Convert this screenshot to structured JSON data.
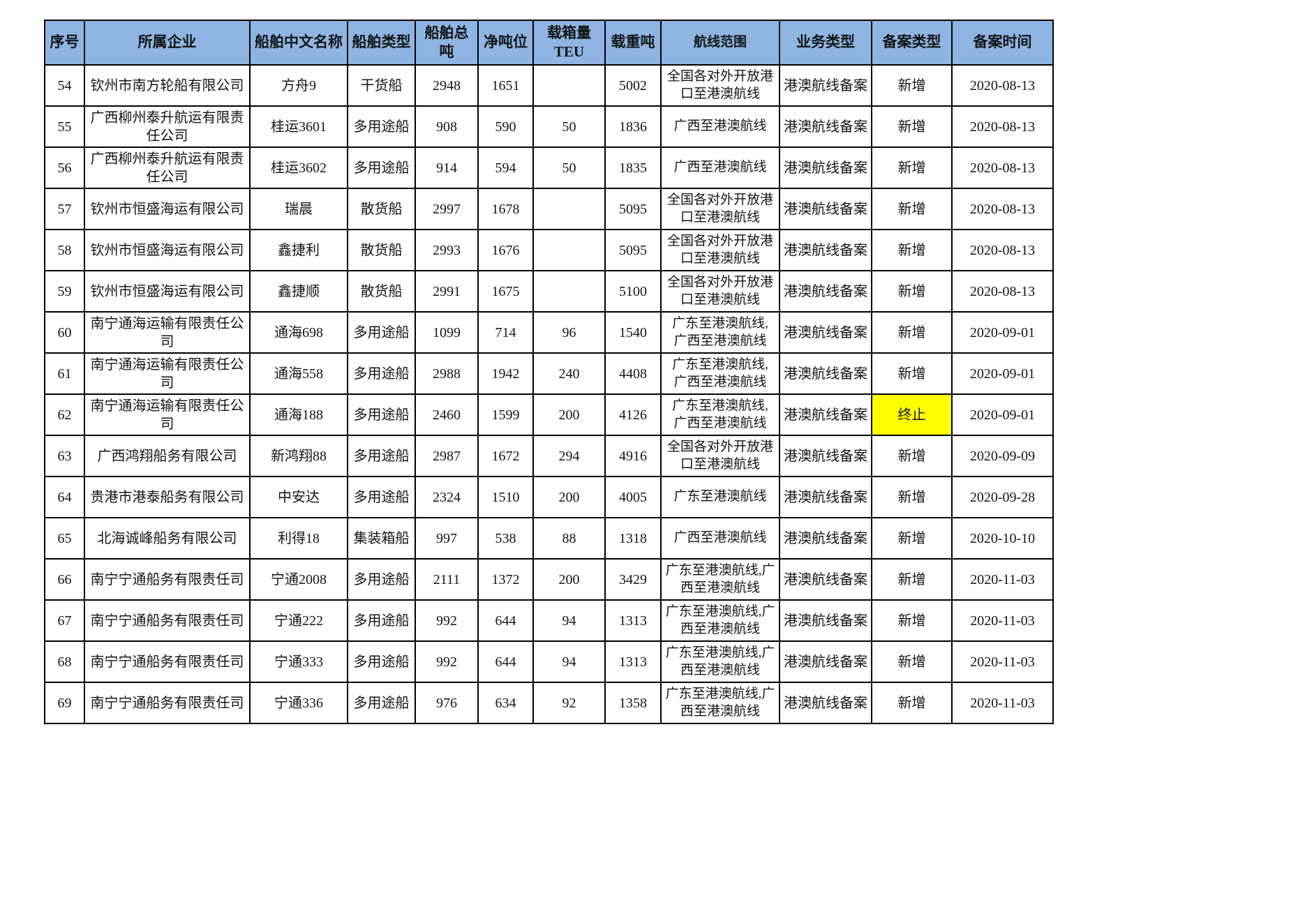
{
  "colors": {
    "header_bg": "#8DB4E2",
    "highlight_bg": "#FFFF00",
    "border": "#000000",
    "text": "#141414"
  },
  "table": {
    "columns": [
      {
        "key": "index",
        "label": "序号"
      },
      {
        "key": "company",
        "label": "所属企业"
      },
      {
        "key": "ship_name",
        "label": "船舶中文名称"
      },
      {
        "key": "ship_type",
        "label": "船舶类型"
      },
      {
        "key": "gross_tonnage",
        "label": "船舶总吨"
      },
      {
        "key": "net_tonnage",
        "label": "净吨位"
      },
      {
        "key": "teu",
        "label": "载箱量TEU"
      },
      {
        "key": "dwt",
        "label": "载重吨"
      },
      {
        "key": "route",
        "label": "航线范围"
      },
      {
        "key": "business_type",
        "label": "业务类型"
      },
      {
        "key": "filing_type",
        "label": "备案类型"
      },
      {
        "key": "filing_date",
        "label": "备案时间"
      }
    ],
    "rows": [
      {
        "index": "54",
        "company": "钦州市南方轮船有限公司",
        "ship_name": "方舟9",
        "ship_type": "干货船",
        "gross_tonnage": "2948",
        "net_tonnage": "1651",
        "teu": "",
        "dwt": "5002",
        "route": "全国各对外开放港\n口至港澳航线",
        "business_type": "港澳航线备案",
        "filing_type": "新增",
        "filing_date": "2020-08-13",
        "filing_type_highlight": false
      },
      {
        "index": "55",
        "company": "广西柳州泰升航运有限责\n任公司",
        "ship_name": "桂运3601",
        "ship_type": "多用途船",
        "gross_tonnage": "908",
        "net_tonnage": "590",
        "teu": "50",
        "dwt": "1836",
        "route": "广西至港澳航线",
        "business_type": "港澳航线备案",
        "filing_type": "新增",
        "filing_date": "2020-08-13",
        "filing_type_highlight": false
      },
      {
        "index": "56",
        "company": "广西柳州泰升航运有限责\n任公司",
        "ship_name": "桂运3602",
        "ship_type": "多用途船",
        "gross_tonnage": "914",
        "net_tonnage": "594",
        "teu": "50",
        "dwt": "1835",
        "route": "广西至港澳航线",
        "business_type": "港澳航线备案",
        "filing_type": "新增",
        "filing_date": "2020-08-13",
        "filing_type_highlight": false
      },
      {
        "index": "57",
        "company": "钦州市恒盛海运有限公司",
        "ship_name": "瑞晨",
        "ship_type": "散货船",
        "gross_tonnage": "2997",
        "net_tonnage": "1678",
        "teu": "",
        "dwt": "5095",
        "route": "全国各对外开放港\n口至港澳航线",
        "business_type": "港澳航线备案",
        "filing_type": "新增",
        "filing_date": "2020-08-13",
        "filing_type_highlight": false
      },
      {
        "index": "58",
        "company": "钦州市恒盛海运有限公司",
        "ship_name": "鑫捷利",
        "ship_type": "散货船",
        "gross_tonnage": "2993",
        "net_tonnage": "1676",
        "teu": "",
        "dwt": "5095",
        "route": "全国各对外开放港\n口至港澳航线",
        "business_type": "港澳航线备案",
        "filing_type": "新增",
        "filing_date": "2020-08-13",
        "filing_type_highlight": false
      },
      {
        "index": "59",
        "company": "钦州市恒盛海运有限公司",
        "ship_name": "鑫捷顺",
        "ship_type": "散货船",
        "gross_tonnage": "2991",
        "net_tonnage": "1675",
        "teu": "",
        "dwt": "5100",
        "route": "全国各对外开放港\n口至港澳航线",
        "business_type": "港澳航线备案",
        "filing_type": "新增",
        "filing_date": "2020-08-13",
        "filing_type_highlight": false
      },
      {
        "index": "60",
        "company": "南宁通海运输有限责任公\n司",
        "ship_name": "通海698",
        "ship_type": "多用途船",
        "gross_tonnage": "1099",
        "net_tonnage": "714",
        "teu": "96",
        "dwt": "1540",
        "route": "广东至港澳航线,\n广西至港澳航线",
        "business_type": "港澳航线备案",
        "filing_type": "新增",
        "filing_date": "2020-09-01",
        "filing_type_highlight": false
      },
      {
        "index": "61",
        "company": "南宁通海运输有限责任公\n司",
        "ship_name": "通海558",
        "ship_type": "多用途船",
        "gross_tonnage": "2988",
        "net_tonnage": "1942",
        "teu": "240",
        "dwt": "4408",
        "route": "广东至港澳航线,\n广西至港澳航线",
        "business_type": "港澳航线备案",
        "filing_type": "新增",
        "filing_date": "2020-09-01",
        "filing_type_highlight": false
      },
      {
        "index": "62",
        "company": "南宁通海运输有限责任公\n司",
        "ship_name": "通海188",
        "ship_type": "多用途船",
        "gross_tonnage": "2460",
        "net_tonnage": "1599",
        "teu": "200",
        "dwt": "4126",
        "route": "广东至港澳航线,\n广西至港澳航线",
        "business_type": "港澳航线备案",
        "filing_type": "终止",
        "filing_date": "2020-09-01",
        "filing_type_highlight": true
      },
      {
        "index": "63",
        "company": "广西鸿翔船务有限公司",
        "ship_name": "新鸿翔88",
        "ship_type": "多用途船",
        "gross_tonnage": "2987",
        "net_tonnage": "1672",
        "teu": "294",
        "dwt": "4916",
        "route": "全国各对外开放港\n口至港澳航线",
        "business_type": "港澳航线备案",
        "filing_type": "新增",
        "filing_date": "2020-09-09",
        "filing_type_highlight": false
      },
      {
        "index": "64",
        "company": "贵港市港泰船务有限公司",
        "ship_name": "中安达",
        "ship_type": "多用途船",
        "gross_tonnage": "2324",
        "net_tonnage": "1510",
        "teu": "200",
        "dwt": "4005",
        "route": "广东至港澳航线",
        "business_type": "港澳航线备案",
        "filing_type": "新增",
        "filing_date": "2020-09-28",
        "filing_type_highlight": false
      },
      {
        "index": "65",
        "company": "北海诚峰船务有限公司",
        "ship_name": "利得18",
        "ship_type": "集装箱船",
        "gross_tonnage": "997",
        "net_tonnage": "538",
        "teu": "88",
        "dwt": "1318",
        "route": "广西至港澳航线",
        "business_type": "港澳航线备案",
        "filing_type": "新增",
        "filing_date": "2020-10-10",
        "filing_type_highlight": false
      },
      {
        "index": "66",
        "company": "南宁宁通船务有限责任司",
        "ship_name": "宁通2008",
        "ship_type": "多用途船",
        "gross_tonnage": "2111",
        "net_tonnage": "1372",
        "teu": "200",
        "dwt": "3429",
        "route": "广东至港澳航线,广\n西至港澳航线",
        "business_type": "港澳航线备案",
        "filing_type": "新增",
        "filing_date": "2020-11-03",
        "filing_type_highlight": false
      },
      {
        "index": "67",
        "company": "南宁宁通船务有限责任司",
        "ship_name": "宁通222",
        "ship_type": "多用途船",
        "gross_tonnage": "992",
        "net_tonnage": "644",
        "teu": "94",
        "dwt": "1313",
        "route": "广东至港澳航线,广\n西至港澳航线",
        "business_type": "港澳航线备案",
        "filing_type": "新增",
        "filing_date": "2020-11-03",
        "filing_type_highlight": false
      },
      {
        "index": "68",
        "company": "南宁宁通船务有限责任司",
        "ship_name": "宁通333",
        "ship_type": "多用途船",
        "gross_tonnage": "992",
        "net_tonnage": "644",
        "teu": "94",
        "dwt": "1313",
        "route": "广东至港澳航线,广\n西至港澳航线",
        "business_type": "港澳航线备案",
        "filing_type": "新增",
        "filing_date": "2020-11-03",
        "filing_type_highlight": false
      },
      {
        "index": "69",
        "company": "南宁宁通船务有限责任司",
        "ship_name": "宁通336",
        "ship_type": "多用途船",
        "gross_tonnage": "976",
        "net_tonnage": "634",
        "teu": "92",
        "dwt": "1358",
        "route": "广东至港澳航线,广\n西至港澳航线",
        "business_type": "港澳航线备案",
        "filing_type": "新增",
        "filing_date": "2020-11-03",
        "filing_type_highlight": false
      }
    ]
  }
}
